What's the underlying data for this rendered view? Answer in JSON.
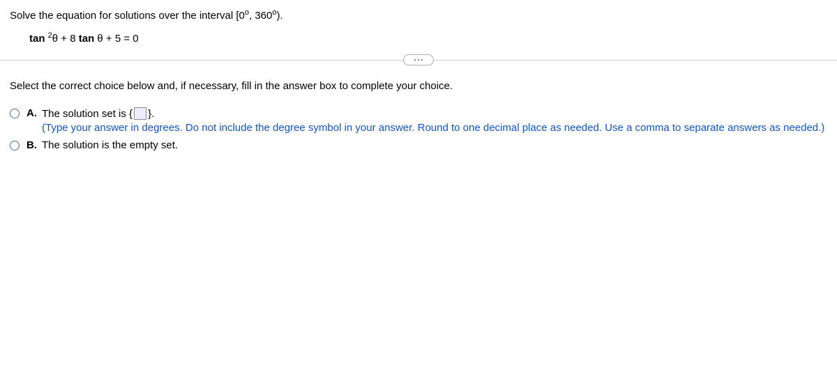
{
  "stem": {
    "text_before": "Solve the equation for solutions over the interval [0",
    "deg_sym": "o",
    "comma_360": ", 360",
    "close": ")."
  },
  "equation": {
    "tan": "tan",
    "sup": "2",
    "after_sup": "θ + 8 ",
    "tan2": "tan",
    "rest": " θ + 5 = 0"
  },
  "instruction": "Select the correct choice below and, if necessary, fill in the answer box to complete your choice.",
  "choices": {
    "a": {
      "letter": "A.",
      "pre": "The solution set is {",
      "post": "}.",
      "hint": "(Type your answer in degrees. Do not include the degree symbol in your answer. Round to one decimal place as needed. Use a comma to separate answers as needed.)"
    },
    "b": {
      "letter": "B.",
      "text": "The solution is the empty set."
    }
  }
}
